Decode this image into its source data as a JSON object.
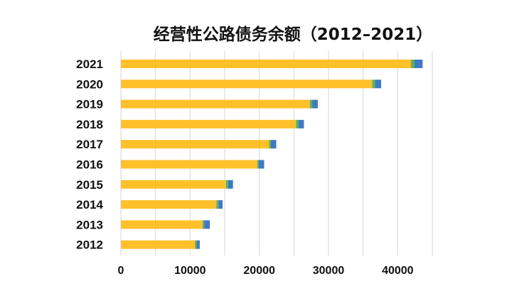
{
  "chart_data": {
    "type": "bar",
    "orientation": "horizontal",
    "stacked": true,
    "title": "经营性公路债务余额（2012–2021）",
    "categories": [
      "2021",
      "2020",
      "2019",
      "2018",
      "2017",
      "2016",
      "2015",
      "2014",
      "2013",
      "2012"
    ],
    "series": [
      {
        "color": "#FFC02A",
        "values": [
          41900,
          36300,
          27300,
          25300,
          21400,
          19700,
          15200,
          13800,
          11800,
          10700
        ]
      },
      {
        "color": "#5DB64B",
        "values": [
          500,
          400,
          350,
          350,
          250,
          200,
          300,
          300,
          250,
          250
        ]
      },
      {
        "color": "#3F78C7",
        "values": [
          1200,
          900,
          800,
          800,
          800,
          800,
          700,
          600,
          800,
          450
        ]
      }
    ],
    "xlim": [
      0,
      45000
    ],
    "xticks": [
      0,
      10000,
      20000,
      30000,
      40000
    ],
    "grid": true
  }
}
